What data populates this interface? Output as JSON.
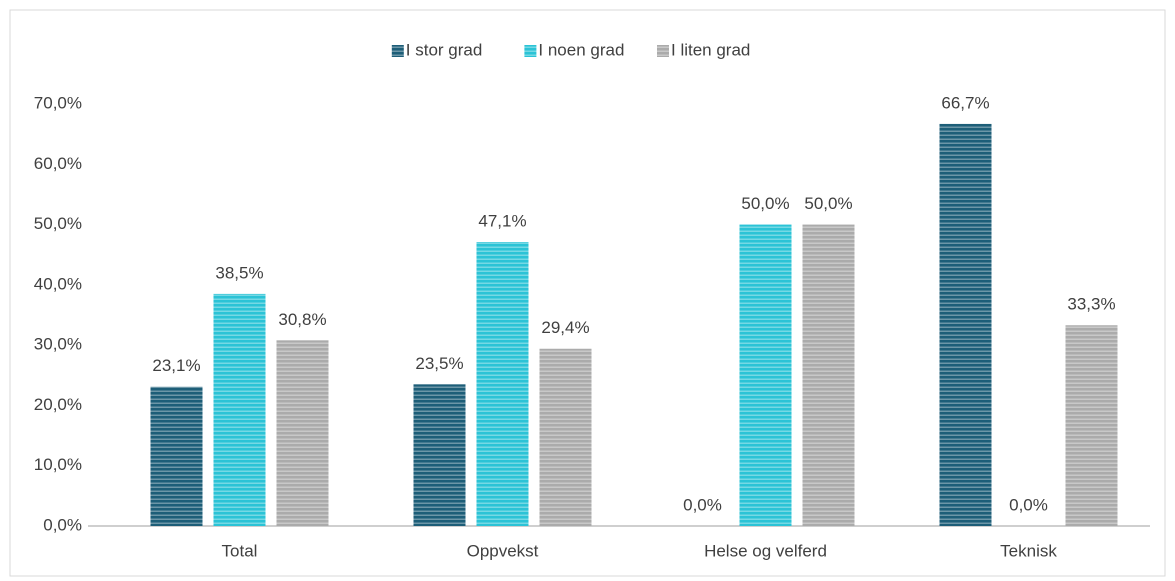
{
  "chart_data": {
    "type": "bar",
    "categories": [
      "Total",
      "Oppvekst",
      "Helse og velferd",
      "Teknisk"
    ],
    "series": [
      {
        "name": "I stor grad",
        "color": "#1d5e78",
        "values": [
          23.1,
          23.5,
          0.0,
          66.7
        ],
        "value_labels": [
          "23,1%",
          "23,5%",
          "0,0%",
          "66,7%"
        ]
      },
      {
        "name": "I noen grad",
        "color": "#2bc3d6",
        "values": [
          38.5,
          47.1,
          50.0,
          0.0
        ],
        "value_labels": [
          "38,5%",
          "47,1%",
          "50,0%",
          "0,0%"
        ]
      },
      {
        "name": "I liten grad",
        "color": "#ababab",
        "values": [
          30.8,
          29.4,
          50.0,
          33.3
        ],
        "value_labels": [
          "30,8%",
          "29,4%",
          "50,0%",
          "33,3%"
        ]
      }
    ],
    "ylim": [
      0,
      70
    ],
    "yticks": [
      {
        "value": 0,
        "label": "0,0%"
      },
      {
        "value": 10,
        "label": "10,0%"
      },
      {
        "value": 20,
        "label": "20,0%"
      },
      {
        "value": 30,
        "label": "30,0%"
      },
      {
        "value": 40,
        "label": "40,0%"
      },
      {
        "value": 50,
        "label": "50,0%"
      },
      {
        "value": 60,
        "label": "60,0%"
      },
      {
        "value": 70,
        "label": "70,0%"
      }
    ],
    "legend": "top"
  }
}
